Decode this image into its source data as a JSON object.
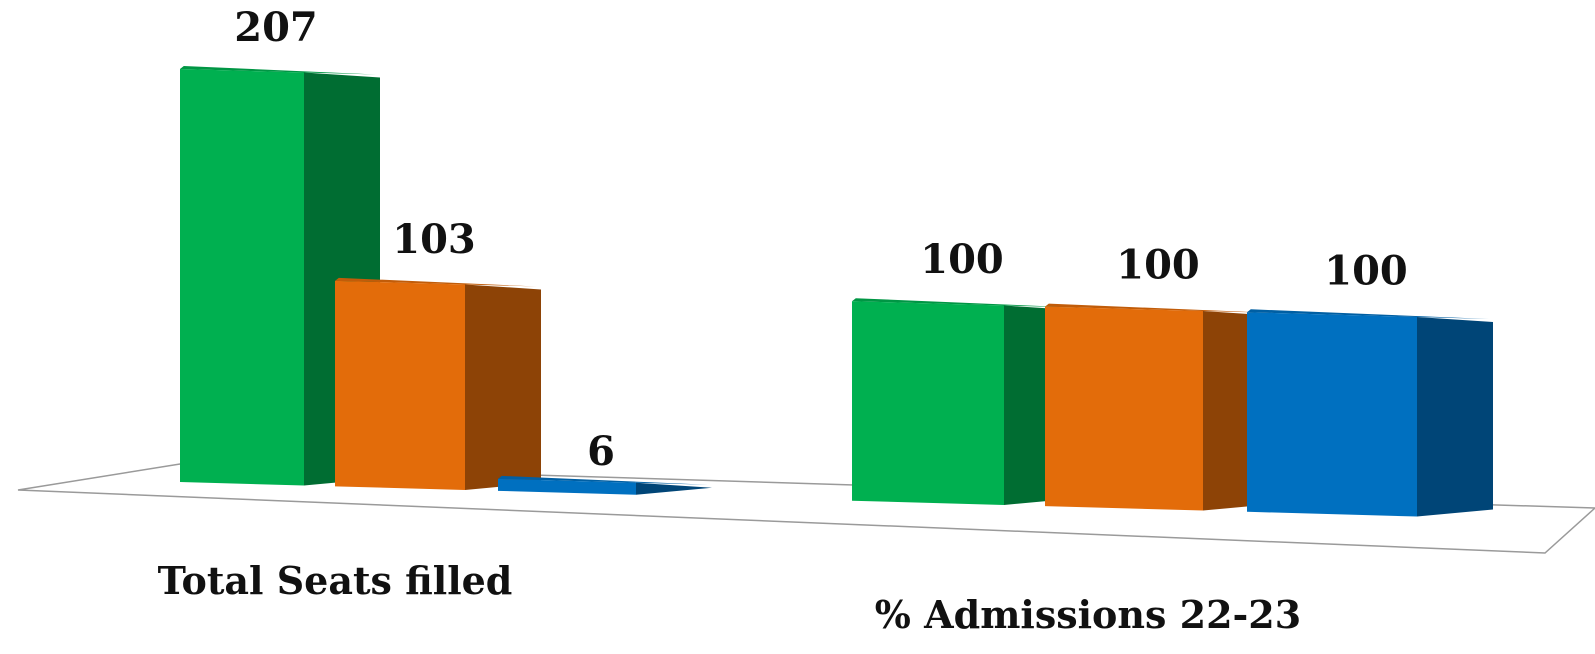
{
  "chart_data": {
    "type": "bar",
    "categories": [
      "Total Seats filled",
      "% Admissions 22-23"
    ],
    "series": [
      {
        "values": [
          207,
          100
        ],
        "color": "#00b050"
      },
      {
        "values": [
          103,
          100
        ],
        "color": "#e36c0a"
      },
      {
        "values": [
          6,
          100
        ],
        "color": "#0070c0"
      }
    ],
    "data_labels": [
      [
        "207",
        "103",
        "6"
      ],
      [
        "100",
        "100",
        "100"
      ]
    ],
    "title": "",
    "xlabel": "",
    "ylabel": "",
    "style": "3d-clustered-column",
    "grid": false,
    "legend": "none"
  }
}
